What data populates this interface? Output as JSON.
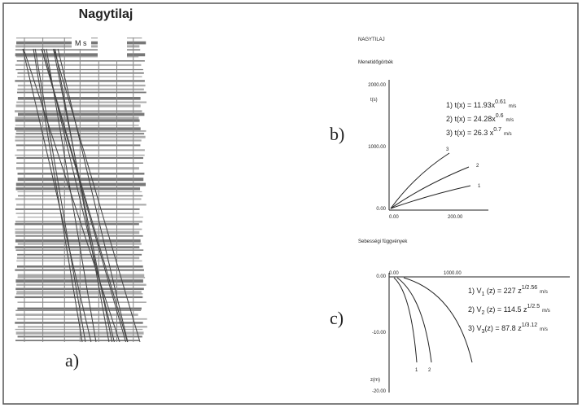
{
  "panel_a": {
    "title": "Nagytilaj",
    "inset": "M s",
    "label": "a)"
  },
  "panel_b": {
    "heading": "NAGYTILAJ",
    "title": "Menetidőgörbék",
    "label": "b)",
    "axis_label": "t(s)",
    "yticks": [
      "2000.00",
      "1000.00",
      "0.00"
    ],
    "xticks": [
      "0.00",
      "200.00"
    ],
    "curve_labels": [
      "3",
      "2",
      "1"
    ],
    "equations": [
      {
        "text": "1) t(x) = 11.93x",
        "exp": "0.61",
        "unit": "m/s"
      },
      {
        "text": "2) t(x) = 24.28x",
        "exp": "0.6",
        "unit": "m/s"
      },
      {
        "text": "3) t(x) = 26.3 x",
        "exp": "0.7",
        "unit": "m/s"
      }
    ]
  },
  "panel_c": {
    "title": "Sebességi függvények",
    "label": "c)",
    "axis_label": "z(m)",
    "yticks": [
      "0.00",
      "-10.00",
      "-20.00"
    ],
    "xticks": [
      "0.00",
      "1000.00"
    ],
    "curve_labels": [
      "1",
      "2"
    ],
    "equations": [
      {
        "text": "1) V",
        "sub": "1",
        "rest": " (z) = 227 z",
        "exp": "1/2.56",
        "unit": "m/s"
      },
      {
        "text": "2) V",
        "sub": "2",
        "rest": " (z) = 114.5 z",
        "exp": "1/2.5",
        "unit": "m/s"
      },
      {
        "text": "3) V",
        "sub": "3",
        "rest": "(z) = 87.8 z",
        "exp": "1/3.12",
        "unit": "m/s"
      }
    ]
  }
}
